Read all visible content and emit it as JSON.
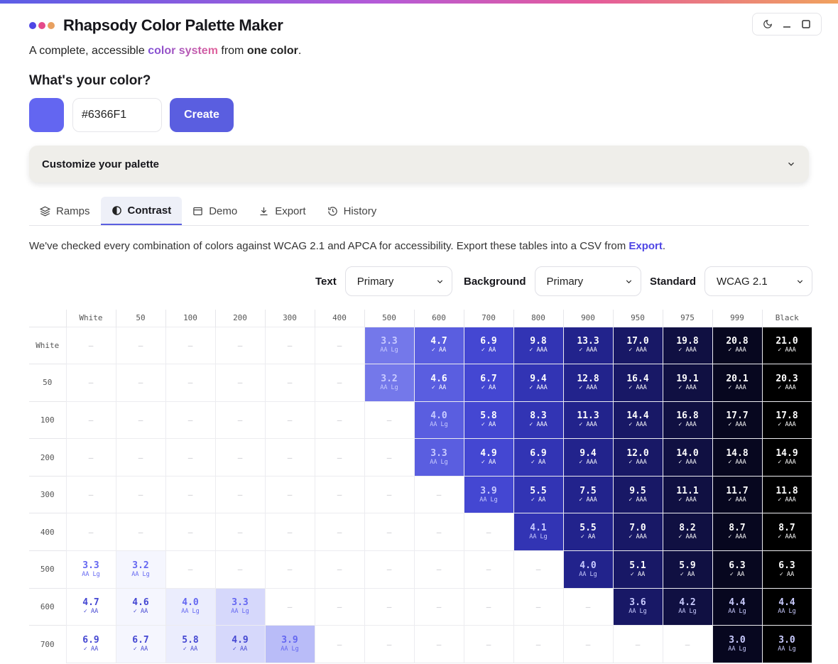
{
  "app": {
    "title": "Rhapsody Color Palette Maker",
    "logo_colors": [
      "#4f46e5",
      "#e44a8a",
      "#e8a060"
    ]
  },
  "tagline": {
    "prefix": "A complete, accessible ",
    "highlight": "color system",
    "middle": " from ",
    "bold": "one color",
    "suffix": "."
  },
  "color_input": {
    "question": "What's your color?",
    "swatch_color": "#6366F1",
    "hex_value": "#6366F1",
    "create_label": "Create"
  },
  "customize": {
    "label": "Customize your palette"
  },
  "tabs": [
    {
      "label": "Ramps",
      "icon": "layers-icon",
      "active": false
    },
    {
      "label": "Contrast",
      "icon": "contrast-icon",
      "active": true
    },
    {
      "label": "Demo",
      "icon": "window-icon",
      "active": false
    },
    {
      "label": "Export",
      "icon": "download-icon",
      "active": false
    },
    {
      "label": "History",
      "icon": "history-icon",
      "active": false
    }
  ],
  "description": {
    "text": "We've checked every combination of colors against WCAG 2.1 and APCA for accessibility. Export these tables into a CSV from ",
    "link": "Export",
    "suffix": "."
  },
  "filters": {
    "text_label": "Text",
    "text_value": "Primary",
    "background_label": "Background",
    "background_value": "Primary",
    "standard_label": "Standard",
    "standard_value": "WCAG 2.1"
  },
  "contrast_table": {
    "columns": [
      "White",
      "50",
      "100",
      "200",
      "300",
      "400",
      "500",
      "600",
      "700",
      "800",
      "900",
      "950",
      "975",
      "999",
      "Black"
    ],
    "column_colors": [
      "#ffffff",
      "#f5f6fe",
      "#ebedfd",
      "#d6d8fb",
      "#b9bcf8",
      "#8f93f4",
      "#7478ea",
      "#5a5ee0",
      "#4447d2",
      "#3234b4",
      "#22238c",
      "#181866",
      "#101042",
      "#07071f",
      "#000000"
    ],
    "empty_mark": "–",
    "rows": [
      {
        "label": "White",
        "cells": [
          null,
          null,
          null,
          null,
          null,
          null,
          [
            "3.3",
            "AA Lg"
          ],
          [
            "4.7",
            "✓ AA"
          ],
          [
            "6.9",
            "✓ AA"
          ],
          [
            "9.8",
            "✓ AAA"
          ],
          [
            "13.3",
            "✓ AAA"
          ],
          [
            "17.0",
            "✓ AAA"
          ],
          [
            "19.8",
            "✓ AAA"
          ],
          [
            "20.8",
            "✓ AAA"
          ],
          [
            "21.0",
            "✓ AAA"
          ]
        ]
      },
      {
        "label": "50",
        "cells": [
          null,
          null,
          null,
          null,
          null,
          null,
          [
            "3.2",
            "AA Lg"
          ],
          [
            "4.6",
            "✓ AA"
          ],
          [
            "6.7",
            "✓ AA"
          ],
          [
            "9.4",
            "✓ AAA"
          ],
          [
            "12.8",
            "✓ AAA"
          ],
          [
            "16.4",
            "✓ AAA"
          ],
          [
            "19.1",
            "✓ AAA"
          ],
          [
            "20.1",
            "✓ AAA"
          ],
          [
            "20.3",
            "✓ AAA"
          ]
        ]
      },
      {
        "label": "100",
        "cells": [
          null,
          null,
          null,
          null,
          null,
          null,
          null,
          [
            "4.0",
            "AA Lg"
          ],
          [
            "5.8",
            "✓ AA"
          ],
          [
            "8.3",
            "✓ AAA"
          ],
          [
            "11.3",
            "✓ AAA"
          ],
          [
            "14.4",
            "✓ AAA"
          ],
          [
            "16.8",
            "✓ AAA"
          ],
          [
            "17.7",
            "✓ AAA"
          ],
          [
            "17.8",
            "✓ AAA"
          ]
        ]
      },
      {
        "label": "200",
        "cells": [
          null,
          null,
          null,
          null,
          null,
          null,
          null,
          [
            "3.3",
            "AA Lg"
          ],
          [
            "4.9",
            "✓ AA"
          ],
          [
            "6.9",
            "✓ AA"
          ],
          [
            "9.4",
            "✓ AAA"
          ],
          [
            "12.0",
            "✓ AAA"
          ],
          [
            "14.0",
            "✓ AAA"
          ],
          [
            "14.8",
            "✓ AAA"
          ],
          [
            "14.9",
            "✓ AAA"
          ]
        ]
      },
      {
        "label": "300",
        "cells": [
          null,
          null,
          null,
          null,
          null,
          null,
          null,
          null,
          [
            "3.9",
            "AA Lg"
          ],
          [
            "5.5",
            "✓ AA"
          ],
          [
            "7.5",
            "✓ AAA"
          ],
          [
            "9.5",
            "✓ AAA"
          ],
          [
            "11.1",
            "✓ AAA"
          ],
          [
            "11.7",
            "✓ AAA"
          ],
          [
            "11.8",
            "✓ AAA"
          ]
        ]
      },
      {
        "label": "400",
        "cells": [
          null,
          null,
          null,
          null,
          null,
          null,
          null,
          null,
          null,
          [
            "4.1",
            "AA Lg"
          ],
          [
            "5.5",
            "✓ AA"
          ],
          [
            "7.0",
            "✓ AAA"
          ],
          [
            "8.2",
            "✓ AAA"
          ],
          [
            "8.7",
            "✓ AAA"
          ],
          [
            "8.7",
            "✓ AAA"
          ]
        ]
      },
      {
        "label": "500",
        "cells": [
          [
            "3.3",
            "AA Lg"
          ],
          [
            "3.2",
            "AA Lg"
          ],
          null,
          null,
          null,
          null,
          null,
          null,
          null,
          null,
          [
            "4.0",
            "AA Lg"
          ],
          [
            "5.1",
            "✓ AA"
          ],
          [
            "5.9",
            "✓ AA"
          ],
          [
            "6.3",
            "✓ AA"
          ],
          [
            "6.3",
            "✓ AA"
          ]
        ]
      },
      {
        "label": "600",
        "cells": [
          [
            "4.7",
            "✓ AA"
          ],
          [
            "4.6",
            "✓ AA"
          ],
          [
            "4.0",
            "AA Lg"
          ],
          [
            "3.3",
            "AA Lg"
          ],
          null,
          null,
          null,
          null,
          null,
          null,
          null,
          [
            "3.6",
            "AA Lg"
          ],
          [
            "4.2",
            "AA Lg"
          ],
          [
            "4.4",
            "AA Lg"
          ],
          [
            "4.4",
            "AA Lg"
          ]
        ]
      },
      {
        "label": "700",
        "cells": [
          [
            "6.9",
            "✓ AA"
          ],
          [
            "6.7",
            "✓ AA"
          ],
          [
            "5.8",
            "✓ AA"
          ],
          [
            "4.9",
            "✓ AA"
          ],
          [
            "3.9",
            "AA Lg"
          ],
          null,
          null,
          null,
          null,
          null,
          null,
          null,
          null,
          [
            "3.0",
            "AA Lg"
          ],
          [
            "3.0",
            "AA Lg"
          ]
        ]
      }
    ]
  }
}
